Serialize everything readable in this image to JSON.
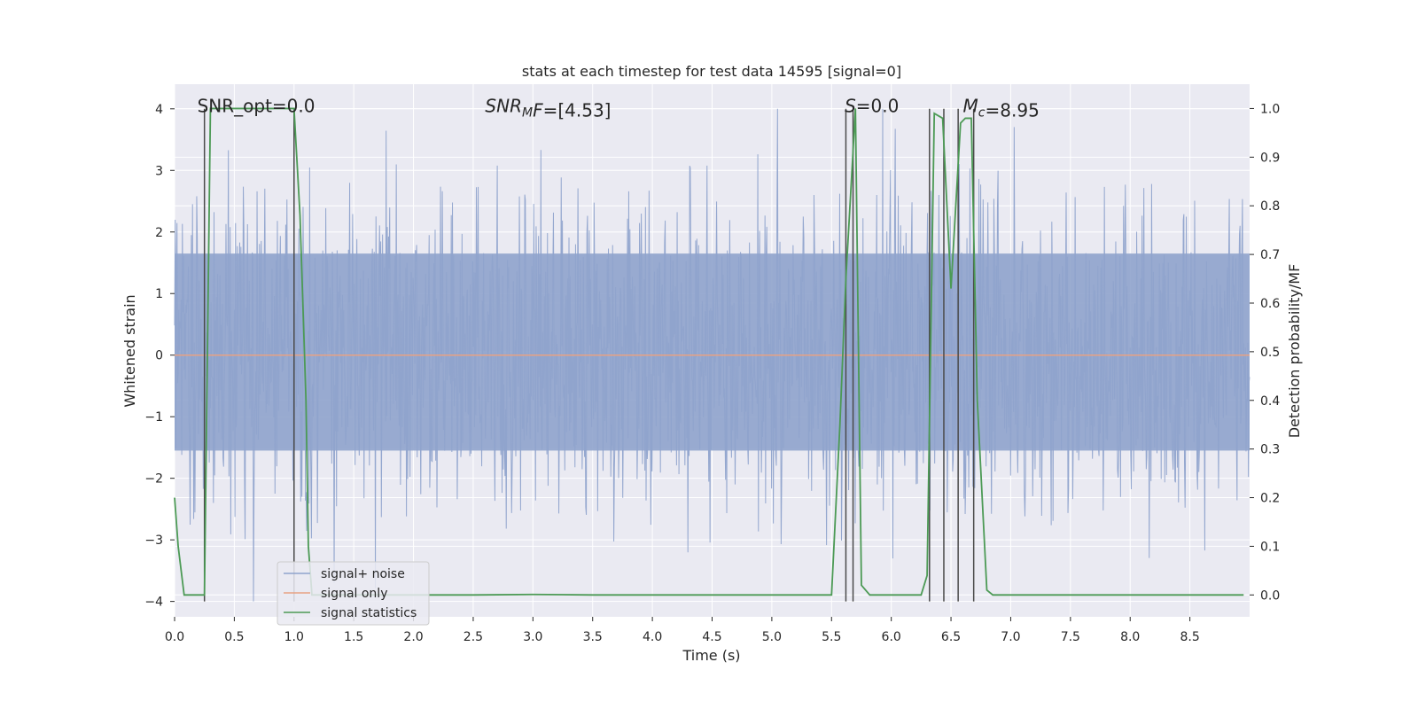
{
  "chart_data": {
    "type": "line",
    "title": "stats at each timestep for test data 14595 [signal=0]",
    "xlabel": "Time (s)",
    "ylabel": "Whitened strain",
    "ylabel_right": "Detection probability/MF",
    "xlim": [
      0.0,
      9.0
    ],
    "ylim": [
      -4.25,
      4.4
    ],
    "ylim_right": [
      -0.045,
      1.05
    ],
    "x_ticks": [
      "0.0",
      "0.5",
      "1.0",
      "1.5",
      "2.0",
      "2.5",
      "3.0",
      "3.5",
      "4.0",
      "4.5",
      "5.0",
      "5.5",
      "6.0",
      "6.5",
      "7.0",
      "7.5",
      "8.0",
      "8.5"
    ],
    "x_tick_values": [
      0,
      0.5,
      1,
      1.5,
      2,
      2.5,
      3,
      3.5,
      4,
      4.5,
      5,
      5.5,
      6,
      6.5,
      7,
      7.5,
      8,
      8.5
    ],
    "y_ticks": [
      "4",
      "3",
      "2",
      "1",
      "0",
      "−1",
      "−2",
      "−3",
      "−4"
    ],
    "y_tick_values": [
      4,
      3,
      2,
      1,
      0,
      -1,
      -2,
      -3,
      -4
    ],
    "y_right_ticks": [
      "1.0",
      "0.9",
      "0.8",
      "0.7",
      "0.6",
      "0.5",
      "0.4",
      "0.3",
      "0.2",
      "0.1",
      "0.0"
    ],
    "y_right_tick_values": [
      1.0,
      0.9,
      0.8,
      0.7,
      0.6,
      0.5,
      0.4,
      0.3,
      0.2,
      0.1,
      0.0
    ],
    "annotations": [
      {
        "id": "snr-opt",
        "parts": [
          {
            "t": "SNR_opt=0.0",
            "s": "n"
          }
        ],
        "x": 0.19,
        "y": 4.05
      },
      {
        "id": "snr-mf",
        "parts": [
          {
            "t": "SNR",
            "s": "i"
          },
          {
            "t": "M",
            "s": "isub"
          },
          {
            "t": "F",
            "s": "i"
          },
          {
            "t": "=[4.53]",
            "s": "n"
          }
        ],
        "x": 2.6,
        "y": 4.05
      },
      {
        "id": "s-value",
        "parts": [
          {
            "t": "S",
            "s": "i"
          },
          {
            "t": "=0.0",
            "s": "n"
          }
        ],
        "x": 5.61,
        "y": 4.05
      },
      {
        "id": "mc-value",
        "parts": [
          {
            "t": "M",
            "s": "i"
          },
          {
            "t": "c",
            "s": "isub"
          },
          {
            "t": "=8.95",
            "s": "n"
          }
        ],
        "x": 6.6,
        "y": 4.05
      }
    ],
    "legend": {
      "placement": "lower-left",
      "entries": [
        {
          "label": "signal+ noise",
          "color": "#8fa3cc"
        },
        {
          "label": "signal only",
          "color": "#e8a183"
        },
        {
          "label": "signal statistics",
          "color": "#4c9a55"
        }
      ]
    },
    "noise_series": {
      "name": "signal+ noise",
      "color": "#8fa3cc",
      "n_points": 1800,
      "seed": 14595,
      "envelope": {
        "upper_typical": 2.4,
        "lower_typical": -2.2,
        "upper_max": 4.0,
        "lower_min": -4.0
      },
      "dense_band": [
        -1.55,
        1.65
      ]
    },
    "signal_only": {
      "name": "signal only",
      "color": "#e8a183",
      "x": [
        0.0,
        9.0
      ],
      "y": [
        0.0,
        0.0
      ]
    },
    "signal_statistics": {
      "name": "signal statistics",
      "color": "#4c9a55",
      "axis": "right",
      "x": [
        0.0,
        0.03,
        0.08,
        0.2,
        0.25,
        0.3,
        0.4,
        0.5,
        0.6,
        0.7,
        0.8,
        0.9,
        1.0,
        1.05,
        1.1,
        1.12,
        1.15,
        1.5,
        2.0,
        2.5,
        3.0,
        3.5,
        4.0,
        4.5,
        5.0,
        5.5,
        5.57,
        5.62,
        5.7,
        5.75,
        5.82,
        5.9,
        6.0,
        6.2,
        6.25,
        6.3,
        6.36,
        6.43,
        6.5,
        6.58,
        6.62,
        6.67,
        6.72,
        6.8,
        6.85,
        7.0,
        7.5,
        8.0,
        8.5,
        8.95
      ],
      "y": [
        0.2,
        0.1,
        0.0,
        0.0,
        0.0,
        1.0,
        1.0,
        1.0,
        1.0,
        1.0,
        1.0,
        1.0,
        1.0,
        0.78,
        0.4,
        0.1,
        0.0,
        0.0,
        0.0,
        0.0,
        0.001,
        0.0,
        0.0,
        0.0,
        0.0,
        0.0,
        0.35,
        0.65,
        1.0,
        0.02,
        0.0,
        0.0,
        0.0,
        0.0,
        0.0,
        0.04,
        0.99,
        0.98,
        0.63,
        0.97,
        0.98,
        0.98,
        0.4,
        0.01,
        0.0,
        0.0,
        0.0,
        0.0,
        0.0,
        0.0
      ]
    },
    "vertical_markers": {
      "color": "#4a4a4a",
      "y_range": [
        -4.0,
        4.0
      ],
      "x": [
        0.25,
        1.0,
        5.62,
        5.68,
        6.32,
        6.44,
        6.56,
        6.69
      ]
    }
  },
  "colors": {
    "axes_bg": "#eaeaf2",
    "grid": "#ffffff",
    "text": "#262626"
  }
}
